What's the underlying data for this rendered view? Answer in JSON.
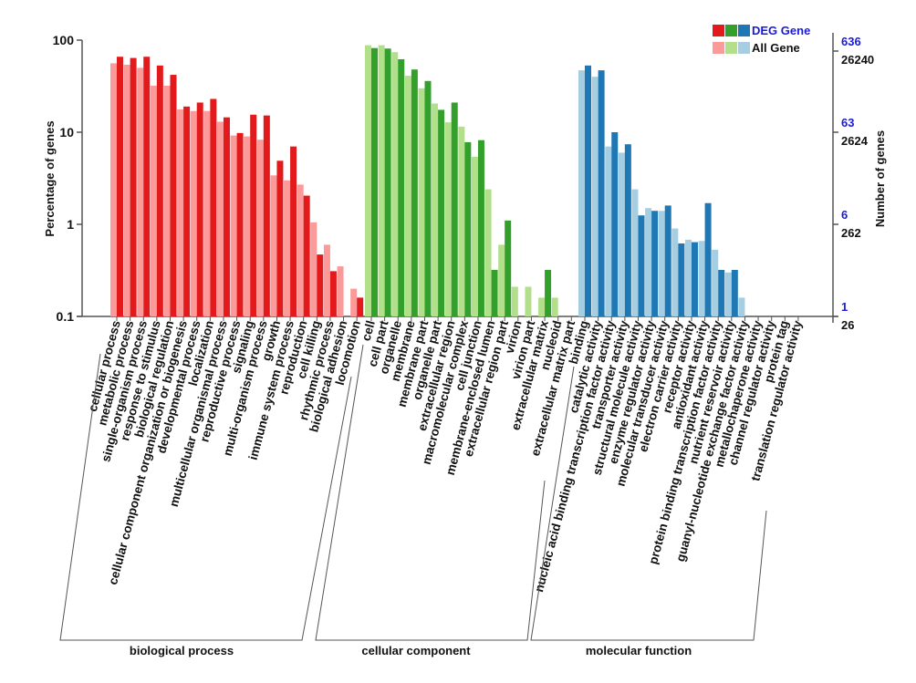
{
  "chart_data": {
    "type": "bar",
    "title": "",
    "ylabel": "Percentage of genes",
    "y2label": "Number of genes",
    "yscale": "log",
    "ylim": [
      0.1,
      100
    ],
    "yticks": [
      "0.1",
      "1",
      "10",
      "100"
    ],
    "y2ticks_deg": [
      "1",
      "6",
      "63",
      "636"
    ],
    "y2ticks_all": [
      "26",
      "262",
      "2624",
      "26240"
    ],
    "legend": {
      "position": "top-right",
      "entries": [
        {
          "label": "DEG Gene",
          "colors": [
            "#e31a1c",
            "#33a02c",
            "#1f78b4"
          ],
          "text_color": "#1a1adb"
        },
        {
          "label": "All Gene",
          "colors": [
            "#fb9a99",
            "#b2df8a",
            "#a6cee3"
          ],
          "text_color": "#111111"
        }
      ]
    },
    "groups": [
      {
        "name": "biological process",
        "colors": {
          "all": "#fb9a99",
          "deg": "#e31a1c"
        },
        "categories": [
          "cellular process",
          "metabolic process",
          "single-organism process",
          "response to stimulus",
          "biological regulation",
          "cellular component organization or biogenesis",
          "developmental process",
          "localization",
          "multicellular organismal process",
          "reproductive process",
          "signaling",
          "multi-organism process",
          "growth",
          "immune system process",
          "reproduction",
          "cell killing",
          "rhythmic process",
          "biological adhesion",
          "locomotion"
        ],
        "series": [
          {
            "name": "All Gene",
            "values": [
              56,
              54,
              50,
              32,
              32,
              17.7,
              17,
              17,
              13,
              9.2,
              9,
              8.3,
              3.4,
              3,
              2.7,
              1.05,
              0.6,
              0.35,
              0.2
            ]
          },
          {
            "name": "DEG Gene",
            "values": [
              66,
              64,
              66,
              53,
              42,
              19,
              21,
              23,
              14.5,
              9.8,
              15.5,
              15.2,
              4.9,
              7,
              2.05,
              0.47,
              0.31,
              null,
              0.16
            ]
          }
        ]
      },
      {
        "name": "cellular component",
        "colors": {
          "all": "#b2df8a",
          "deg": "#33a02c"
        },
        "categories": [
          "cell",
          "cell part",
          "organelle",
          "membrane",
          "membrane part",
          "organelle part",
          "extracellular region",
          "macromolecular complex",
          "cell junction",
          "membrane-enclosed lumen",
          "extracellular region part",
          "virion",
          "virion part",
          "extracellular matrix",
          "nucleoid",
          "extracellular matrix part"
        ],
        "series": [
          {
            "name": "All Gene",
            "values": [
              88,
              88,
              74,
              41,
              30,
              20.5,
              12.8,
              11.5,
              5.4,
              2.4,
              0.6,
              0.21,
              0.21,
              0.16,
              0.16,
              null
            ]
          },
          {
            "name": "DEG Gene",
            "values": [
              82,
              81,
              62,
              48,
              36,
              17.5,
              21,
              7.8,
              8.2,
              0.32,
              1.1,
              null,
              null,
              0.32,
              null,
              null
            ]
          }
        ]
      },
      {
        "name": "molecular function",
        "colors": {
          "all": "#a6cee3",
          "deg": "#1f78b4"
        },
        "categories": [
          "binding",
          "catalytic activity",
          "nucleic acid binding transcription factor activity",
          "transporter activity",
          "structural molecule activity",
          "enzyme regulator activity",
          "molecular transducer activity",
          "electron carrier activity",
          "receptor activity",
          "antioxidant activity",
          "protein binding transcription factor activity",
          "nutrient reservoir activity",
          "guanyl-nucleotide exchange factor activity",
          "metallochaperone activity",
          "channel regulator activity",
          "protein tag",
          "translation regulator activity"
        ],
        "series": [
          {
            "name": "All Gene",
            "values": [
              47,
              40,
              7,
              6,
              2.4,
              1.5,
              1.4,
              0.9,
              0.68,
              0.66,
              0.53,
              0.3,
              0.16,
              null,
              null,
              null,
              null
            ]
          },
          {
            "name": "DEG Gene",
            "values": [
              53,
              47,
              10,
              7.4,
              1.25,
              1.4,
              1.6,
              0.62,
              0.64,
              1.7,
              0.32,
              0.32,
              null,
              null,
              null,
              null,
              null
            ]
          }
        ]
      }
    ]
  }
}
